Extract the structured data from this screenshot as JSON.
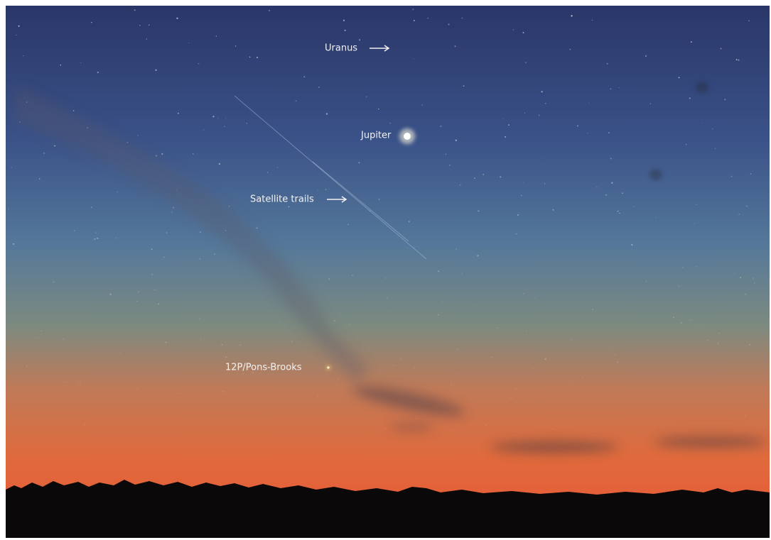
{
  "labels": [
    {
      "text": "Uranus"
    },
    {
      "text": "Jupiter"
    },
    {
      "text": "Satellite trails"
    },
    {
      "text": "12P/Pons-Brooks"
    }
  ]
}
